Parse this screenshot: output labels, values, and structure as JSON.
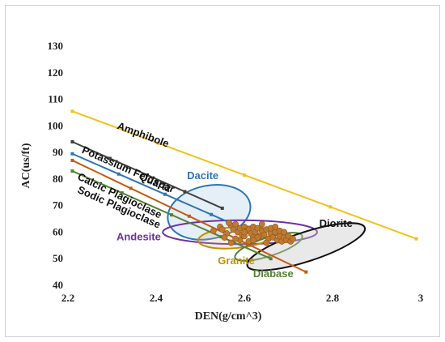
{
  "chart_data": {
    "type": "scatter",
    "xlabel": "DEN(g/cm^3)",
    "ylabel": "AC(us/ft)",
    "xlim": [
      2.2,
      3.0
    ],
    "ylim": [
      40,
      130
    ],
    "x_ticks": [
      "2.2",
      "2.4",
      "2.6",
      "2.8",
      "3"
    ],
    "y_ticks": [
      "40",
      "50",
      "60",
      "70",
      "80",
      "90",
      "100",
      "110",
      "120",
      "130"
    ],
    "grid": false,
    "mineral_lines": [
      {
        "name": "Amphibole",
        "color": "#f2c21b",
        "x": [
          2.21,
          2.99
        ],
        "y": [
          105.5,
          57.5
        ],
        "label_x": 2.31,
        "label_y": 99
      },
      {
        "name": "Potassium Feldspar",
        "color": "#404040",
        "x": [
          2.21,
          2.55
        ],
        "y": [
          94,
          69
        ],
        "label_x": 2.23,
        "label_y": 90
      },
      {
        "name": "Quartz",
        "color": "#2e75b6",
        "x": [
          2.21,
          2.63
        ],
        "y": [
          89.5,
          59
        ],
        "label_x": 2.36,
        "label_y": 80
      },
      {
        "name": "Calcic Plagioclase",
        "color": "#c55a11",
        "x": [
          2.21,
          2.74
        ],
        "y": [
          87,
          45
        ],
        "label_x": 2.22,
        "label_y": 80
      },
      {
        "name": "Sodic Plagioclase",
        "color": "#548235",
        "x": [
          2.21,
          2.66
        ],
        "y": [
          83,
          50
        ],
        "label_x": 2.22,
        "label_y": 75
      }
    ],
    "rock_regions": [
      {
        "name": "Dacite",
        "color": "#2e75b6",
        "fill": "rgba(180,210,235,0.35)",
        "cx": 2.52,
        "cy": 67.5,
        "rx": 0.095,
        "ry": 10,
        "angle": -12,
        "label_x": 2.47,
        "label_y": 80
      },
      {
        "name": "Andesite",
        "color": "#7030a0",
        "fill": "none",
        "cx": 2.59,
        "cy": 60,
        "rx": 0.175,
        "ry": 4.5,
        "angle": 0,
        "label_x": 2.31,
        "label_y": 57
      },
      {
        "name": "Granite",
        "color": "#bf8f00",
        "fill": "rgba(210,180,140,0.25)",
        "cx": 2.58,
        "cy": 58,
        "rx": 0.085,
        "ry": 4,
        "angle": -5,
        "label_x": 2.54,
        "label_y": 48
      },
      {
        "name": "Diabase",
        "color": "#548235",
        "fill": "none",
        "cx": 2.655,
        "cy": 54.5,
        "rx": 0.08,
        "ry": 3.5,
        "angle": -18,
        "label_x": 2.62,
        "label_y": 43
      },
      {
        "name": "Diorite",
        "color": "#111111",
        "fill": "rgba(200,200,200,0.4)",
        "cx": 2.74,
        "cy": 54.5,
        "rx": 0.14,
        "ry": 5.5,
        "angle": -18,
        "label_x": 2.77,
        "label_y": 62
      }
    ],
    "data_points_color": "#c07a30",
    "data_points": [
      [
        2.53,
        60.5
      ],
      [
        2.545,
        62
      ],
      [
        2.55,
        61
      ],
      [
        2.56,
        59.5
      ],
      [
        2.57,
        62.5
      ],
      [
        2.575,
        61
      ],
      [
        2.58,
        63
      ],
      [
        2.585,
        60
      ],
      [
        2.59,
        61.5
      ],
      [
        2.595,
        59
      ],
      [
        2.6,
        62
      ],
      [
        2.605,
        60.5
      ],
      [
        2.61,
        61
      ],
      [
        2.615,
        59.5
      ],
      [
        2.62,
        62
      ],
      [
        2.625,
        60
      ],
      [
        2.63,
        61.5
      ],
      [
        2.635,
        58.5
      ],
      [
        2.64,
        60.5
      ],
      [
        2.645,
        59
      ],
      [
        2.65,
        61
      ],
      [
        2.655,
        57.5
      ],
      [
        2.66,
        59.5
      ],
      [
        2.665,
        58
      ],
      [
        2.67,
        60
      ],
      [
        2.675,
        57
      ],
      [
        2.68,
        58.5
      ],
      [
        2.685,
        56.5
      ],
      [
        2.69,
        58
      ],
      [
        2.695,
        57
      ],
      [
        2.7,
        58.5
      ],
      [
        2.705,
        56.5
      ],
      [
        2.59,
        57
      ],
      [
        2.6,
        58.5
      ],
      [
        2.61,
        56.5
      ],
      [
        2.62,
        58
      ],
      [
        2.57,
        56
      ],
      [
        2.58,
        57.5
      ],
      [
        2.65,
        56
      ],
      [
        2.66,
        61.5
      ],
      [
        2.67,
        62
      ],
      [
        2.64,
        63
      ],
      [
        2.63,
        58
      ],
      [
        2.68,
        60.5
      ],
      [
        2.69,
        60
      ],
      [
        2.555,
        58
      ],
      [
        2.565,
        63.5
      ],
      [
        2.6,
        60
      ],
      [
        2.62,
        57
      ],
      [
        2.71,
        57.5
      ]
    ]
  }
}
